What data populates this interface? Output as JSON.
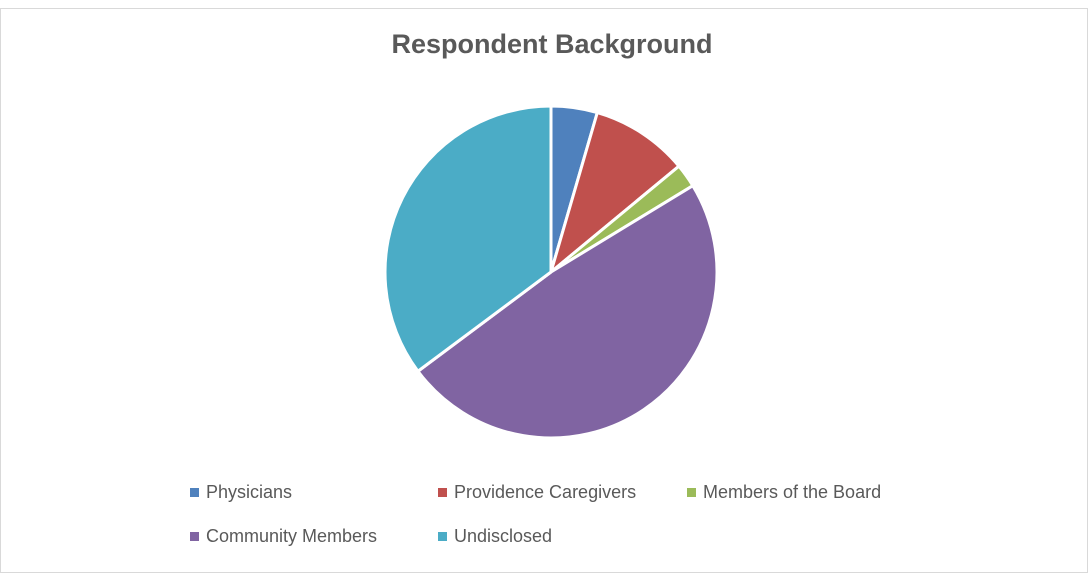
{
  "chart_data": {
    "type": "pie",
    "title": "Respondent Background",
    "categories": [
      "Physicians",
      "Providence Caregivers",
      "Members of the Board",
      "Community Members",
      "Undisclosed"
    ],
    "values": [
      4.5,
      9.5,
      2.3,
      48.5,
      35.2
    ],
    "unit": "percent",
    "start_angle": "12 o'clock",
    "direction": "clockwise",
    "legend_position": "bottom",
    "colors": [
      "#4f81bd",
      "#c0504d",
      "#9bbb59",
      "#8064a2",
      "#4bacc6"
    ]
  }
}
